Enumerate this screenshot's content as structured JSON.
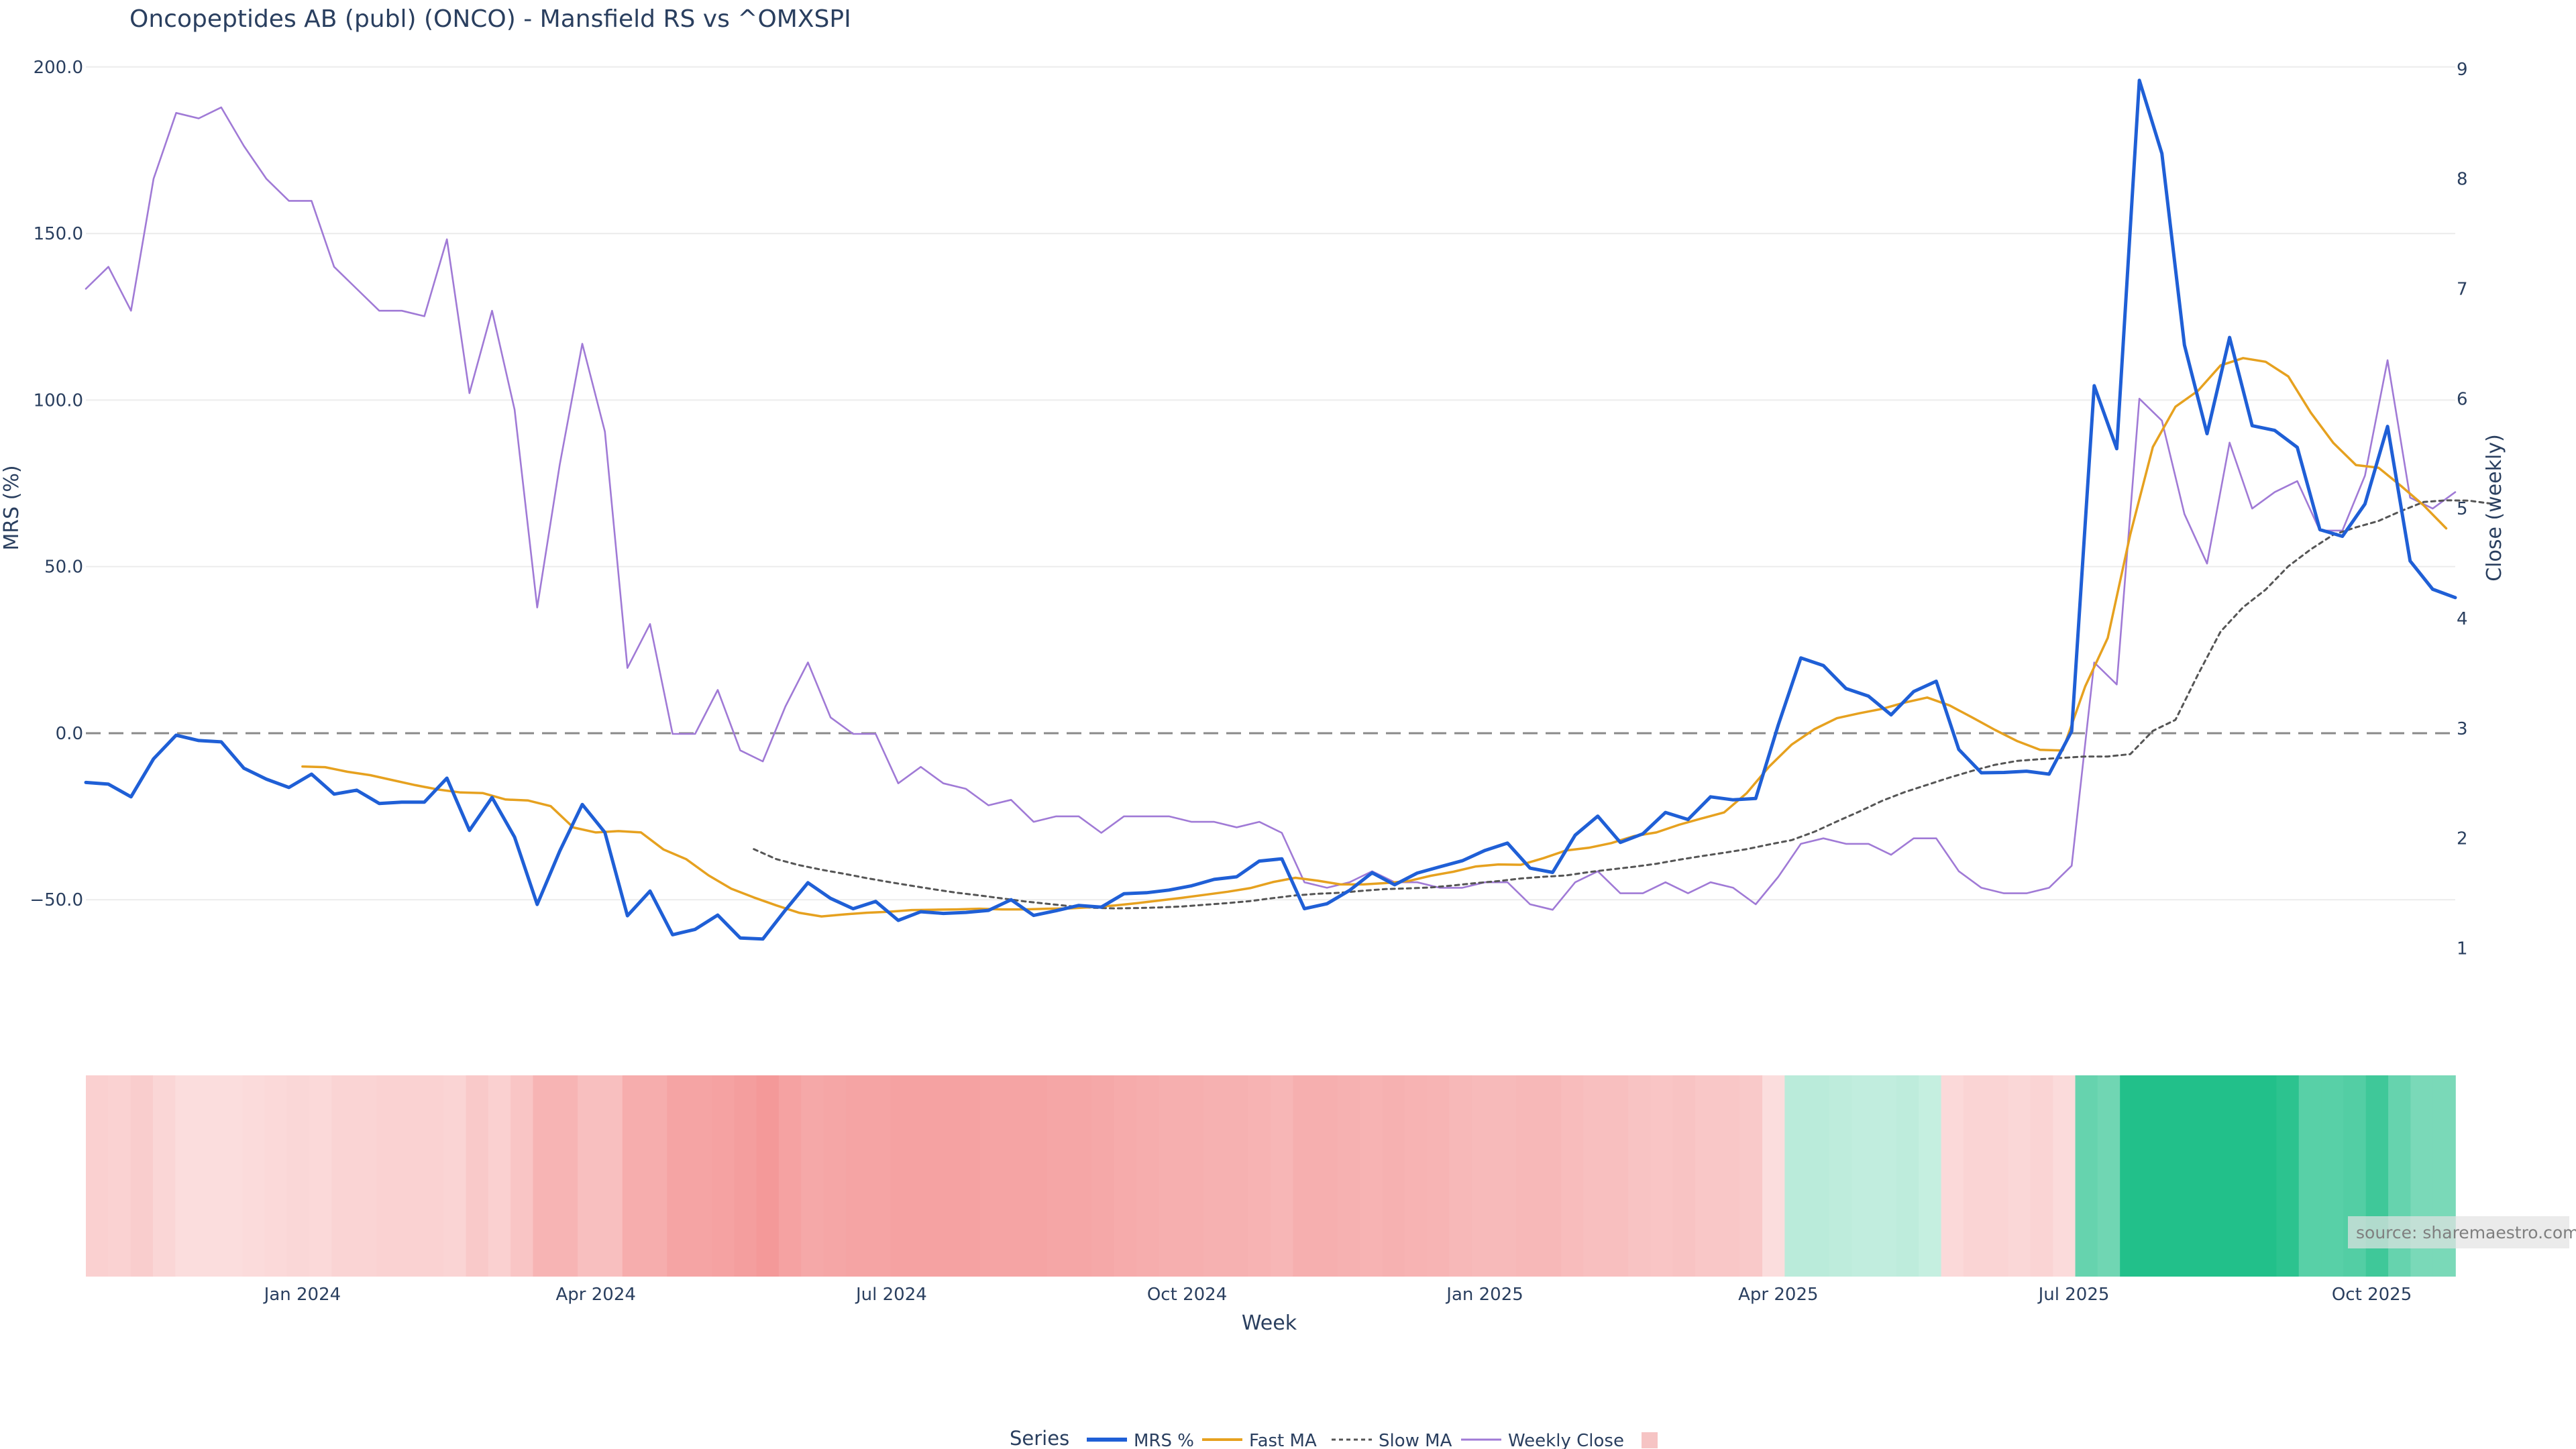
{
  "chart_data": {
    "type": "line",
    "title": "Oncopeptides AB (publ) (ONCO) - Mansfield RS vs ^OMXSPI",
    "xlabel": "Week",
    "ylabel_left": "MRS (%)",
    "ylabel_right": "Close (weekly)",
    "ylim_left": [
      -86,
      206
    ],
    "ylim_right": [
      0.35,
      9.2
    ],
    "left_ticks": [
      "200.0",
      "150.0",
      "100.0",
      "50.0",
      "0.0",
      "−50.0"
    ],
    "left_tick_values": [
      200,
      150,
      100,
      50,
      0,
      -50
    ],
    "right_ticks": [
      "9",
      "8",
      "7",
      "6",
      "5",
      "4",
      "3",
      "2",
      "1"
    ],
    "right_tick_values": [
      9,
      8,
      7,
      6,
      5,
      4,
      3,
      2,
      1
    ],
    "x_ticks": [
      "Jan 2024",
      "Apr 2024",
      "Jul 2024",
      "Oct 2024",
      "Jan 2025",
      "Apr 2025",
      "Jul 2025",
      "Oct 2025"
    ],
    "x_tick_weeks": [
      9.6,
      22.6,
      35.7,
      48.8,
      62.0,
      75.0,
      88.1,
      101.3
    ],
    "zero_line": 0,
    "series": [
      {
        "name": "MRS %",
        "color": "#1f5fd6",
        "axis": "left",
        "values": [
          -14.8,
          -15.3,
          -19.1,
          -7.7,
          -0.6,
          -2.2,
          -2.6,
          -10.5,
          -13.8,
          -16.3,
          -12.3,
          -18.3,
          -17.1,
          -21.1,
          -20.7,
          -20.7,
          -13.5,
          -29.2,
          -19.3,
          -31.2,
          -51.4,
          -35.4,
          -21.4,
          -29.8,
          -54.8,
          -47.4,
          -60.5,
          -58.9,
          -54.6,
          -61.5,
          -61.8,
          -53.1,
          -44.9,
          -49.6,
          -52.7,
          -50.5,
          -56.2,
          -53.6,
          -54.1,
          -53.8,
          -53.2,
          -50.0,
          -54.7,
          -53.3,
          -51.7,
          -52.2,
          -48.2,
          -47.9,
          -47.1,
          -45.8,
          -43.9,
          -43.1,
          -38.4,
          -37.7,
          -52.7,
          -51.2,
          -47.2,
          -41.9,
          -45.5,
          -42.0,
          -40.1,
          -38.3,
          -35.2,
          -33.0,
          -40.5,
          -41.8,
          -30.6,
          -24.9,
          -32.8,
          -30.2,
          -23.8,
          -25.9,
          -19.1,
          -20.0,
          -19.6,
          2.5,
          22.6,
          20.3,
          13.4,
          11.1,
          5.5,
          12.5,
          15.6,
          -4.9,
          -11.9,
          -11.8,
          -11.4,
          -12.3,
          0.6,
          104.3,
          85.4,
          196.0,
          174.0,
          116.5,
          89.9,
          118.8,
          92.3,
          90.9,
          85.8,
          61.1,
          59.1,
          68.8,
          92.1,
          51.7,
          43.2,
          40.7
        ]
      },
      {
        "name": "Fast MA",
        "color": "#e6a11f",
        "axis": "left",
        "start_week": 9.6,
        "values": [
          -10.0,
          -10.2,
          -11.6,
          -12.6,
          -14.1,
          -15.6,
          -16.9,
          -17.8,
          -18.0,
          -19.9,
          -20.2,
          -21.9,
          -28.3,
          -29.8,
          -29.4,
          -29.8,
          -34.9,
          -37.8,
          -42.7,
          -46.7,
          -49.3,
          -51.7,
          -53.9,
          -55.0,
          -54.4,
          -53.9,
          -53.6,
          -53.1,
          -53.0,
          -52.9,
          -52.7,
          -52.9,
          -52.9,
          -52.7,
          -52.6,
          -52.2,
          -51.7,
          -51.0,
          -50.2,
          -49.4,
          -48.5,
          -47.6,
          -46.5,
          -44.7,
          -43.4,
          -44.3,
          -45.4,
          -45.4,
          -45.0,
          -44.4,
          -42.8,
          -41.6,
          -40.0,
          -39.4,
          -39.5,
          -37.5,
          -35.2,
          -34.4,
          -33.0,
          -30.9,
          -29.8,
          -27.5,
          -25.6,
          -23.8,
          -18.0,
          -10.0,
          -3.4,
          1.2,
          4.5,
          6.0,
          7.3,
          9.2,
          10.7,
          8.3,
          4.7,
          1.0,
          -2.4,
          -5.0,
          -5.2,
          14.0,
          28.6,
          59.7,
          85.9,
          98.0,
          102.8,
          110.4,
          112.6,
          111.5,
          107.1,
          96.2,
          87.1,
          80.5,
          79.7,
          74.2,
          68.4,
          61.5
        ]
      },
      {
        "name": "Slow MA",
        "color": "#555555",
        "axis": "left",
        "start_week": 29.6,
        "values": [
          -34.8,
          -37.8,
          -39.6,
          -41.0,
          -42.2,
          -43.5,
          -44.7,
          -45.8,
          -46.9,
          -47.9,
          -48.7,
          -49.6,
          -50.5,
          -51.2,
          -51.9,
          -52.4,
          -52.6,
          -52.5,
          -52.3,
          -52.0,
          -51.5,
          -51.0,
          -50.4,
          -49.5,
          -48.7,
          -48.2,
          -47.9,
          -47.3,
          -46.8,
          -46.6,
          -46.3,
          -45.7,
          -45.0,
          -44.4,
          -43.6,
          -43.1,
          -42.7,
          -41.7,
          -40.9,
          -40.1,
          -39.2,
          -38.0,
          -36.9,
          -35.9,
          -34.8,
          -33.4,
          -32.1,
          -29.6,
          -26.5,
          -23.5,
          -20.3,
          -17.7,
          -15.5,
          -13.3,
          -11.3,
          -9.5,
          -8.3,
          -7.8,
          -7.4,
          -7.0,
          -7.0,
          -6.3,
          0.7,
          4.0,
          17.6,
          30.5,
          37.8,
          43.1,
          50.1,
          55.2,
          59.6,
          61.8,
          63.7,
          66.7,
          69.4,
          69.9,
          69.8,
          68.9
        ]
      },
      {
        "name": "Weekly Close",
        "color": "#a07ad6",
        "axis": "right",
        "values": [
          7.0,
          7.2,
          6.8,
          8.0,
          8.6,
          8.55,
          8.65,
          8.3,
          8.0,
          7.8,
          7.8,
          7.2,
          7.0,
          6.8,
          6.8,
          6.75,
          7.45,
          6.05,
          6.8,
          5.9,
          4.1,
          5.4,
          6.5,
          5.7,
          3.55,
          3.95,
          2.95,
          2.95,
          3.35,
          2.8,
          2.7,
          3.2,
          3.6,
          3.1,
          2.95,
          2.95,
          2.5,
          2.65,
          2.5,
          2.45,
          2.3,
          2.35,
          2.15,
          2.2,
          2.2,
          2.05,
          2.2,
          2.2,
          2.2,
          2.15,
          2.15,
          2.1,
          2.15,
          2.05,
          1.6,
          1.55,
          1.6,
          1.7,
          1.6,
          1.6,
          1.55,
          1.55,
          1.6,
          1.6,
          1.4,
          1.35,
          1.6,
          1.7,
          1.5,
          1.5,
          1.6,
          1.5,
          1.6,
          1.55,
          1.4,
          1.65,
          1.95,
          2.0,
          1.95,
          1.95,
          1.85,
          2.0,
          2.0,
          1.7,
          1.55,
          1.5,
          1.5,
          1.55,
          1.75,
          3.6,
          3.4,
          6.0,
          5.8,
          4.95,
          4.5,
          5.6,
          5.0,
          5.15,
          5.25,
          4.8,
          4.8,
          5.3,
          6.35,
          5.1,
          5.0,
          5.15
        ]
      }
    ],
    "heatmap_strip": {
      "description": "MRS percentile color band by week",
      "values": [
        -0.3,
        -0.28,
        -0.33,
        -0.25,
        -0.18,
        -0.18,
        -0.18,
        -0.2,
        -0.22,
        -0.24,
        -0.22,
        -0.26,
        -0.26,
        -0.28,
        -0.28,
        -0.28,
        -0.26,
        -0.36,
        -0.3,
        -0.4,
        -0.55,
        -0.55,
        -0.45,
        -0.45,
        -0.62,
        -0.62,
        -0.7,
        -0.7,
        -0.72,
        -0.75,
        -0.8,
        -0.72,
        -0.66,
        -0.68,
        -0.7,
        -0.7,
        -0.72,
        -0.72,
        -0.72,
        -0.72,
        -0.7,
        -0.7,
        -0.7,
        -0.68,
        -0.68,
        -0.66,
        -0.64,
        -0.62,
        -0.6,
        -0.6,
        -0.58,
        -0.58,
        -0.56,
        -0.54,
        -0.6,
        -0.6,
        -0.58,
        -0.56,
        -0.58,
        -0.56,
        -0.55,
        -0.52,
        -0.5,
        -0.5,
        -0.52,
        -0.52,
        -0.48,
        -0.45,
        -0.45,
        -0.42,
        -0.4,
        -0.42,
        -0.38,
        -0.38,
        -0.36,
        -0.18,
        0.22,
        0.22,
        0.2,
        0.18,
        0.18,
        0.2,
        0.16,
        -0.22,
        -0.26,
        -0.26,
        -0.24,
        -0.26,
        -0.2,
        0.65,
        0.6,
        1.0,
        1.0,
        1.0,
        1.0,
        1.0,
        1.0,
        1.0,
        0.95,
        0.72,
        0.72,
        0.75,
        0.85,
        0.65,
        0.55,
        0.55
      ]
    },
    "legend": {
      "title": "Series",
      "entries": [
        "MRS %",
        "Fast MA",
        "Slow MA",
        "Weekly Close",
        ""
      ],
      "placement": "bottom-center"
    },
    "source": "source: sharemaestro.com",
    "colors": {
      "mrs": "#1f5fd6",
      "fast": "#e6a11f",
      "slow": "#555555",
      "close": "#a07ad6",
      "neg": "#f28b8b",
      "pos": "#22c08a"
    }
  }
}
